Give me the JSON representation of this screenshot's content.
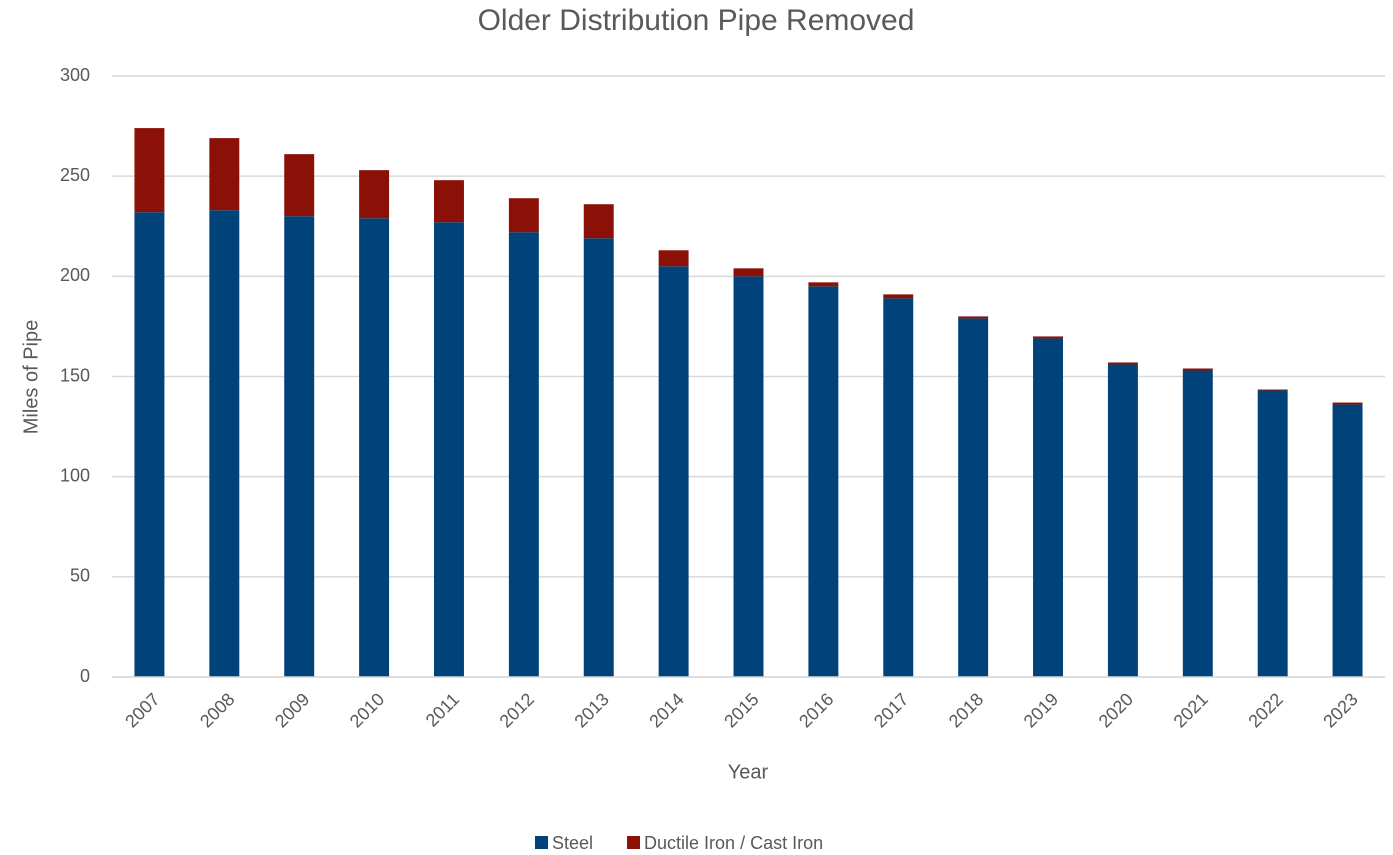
{
  "chart_data": {
    "type": "bar",
    "stacked": true,
    "title": "Older Distribution Pipe Removed",
    "x_label": "Year",
    "y_label": "Miles of Pipe",
    "categories": [
      "2007",
      "2008",
      "2009",
      "2010",
      "2011",
      "2012",
      "2013",
      "2014",
      "2015",
      "2016",
      "2017",
      "2018",
      "2019",
      "2020",
      "2021",
      "2022",
      "2023"
    ],
    "series": [
      {
        "name": "Steel",
        "color": "#00427a",
        "values": [
          232,
          233,
          230,
          229,
          227,
          222,
          219,
          205,
          200,
          195,
          189,
          179,
          169,
          156,
          153,
          143,
          136
        ]
      },
      {
        "name": "Ductile Iron / Cast Iron",
        "color": "#8b1108",
        "values": [
          42,
          36,
          31,
          24,
          21,
          17,
          17,
          8,
          4,
          2,
          2,
          1,
          1,
          1,
          1,
          0.5,
          1
        ]
      }
    ],
    "ylim": [
      0,
      300
    ],
    "yticks": [
      0,
      50,
      100,
      150,
      200,
      250,
      300
    ],
    "grid": true,
    "legend": "bottom"
  }
}
